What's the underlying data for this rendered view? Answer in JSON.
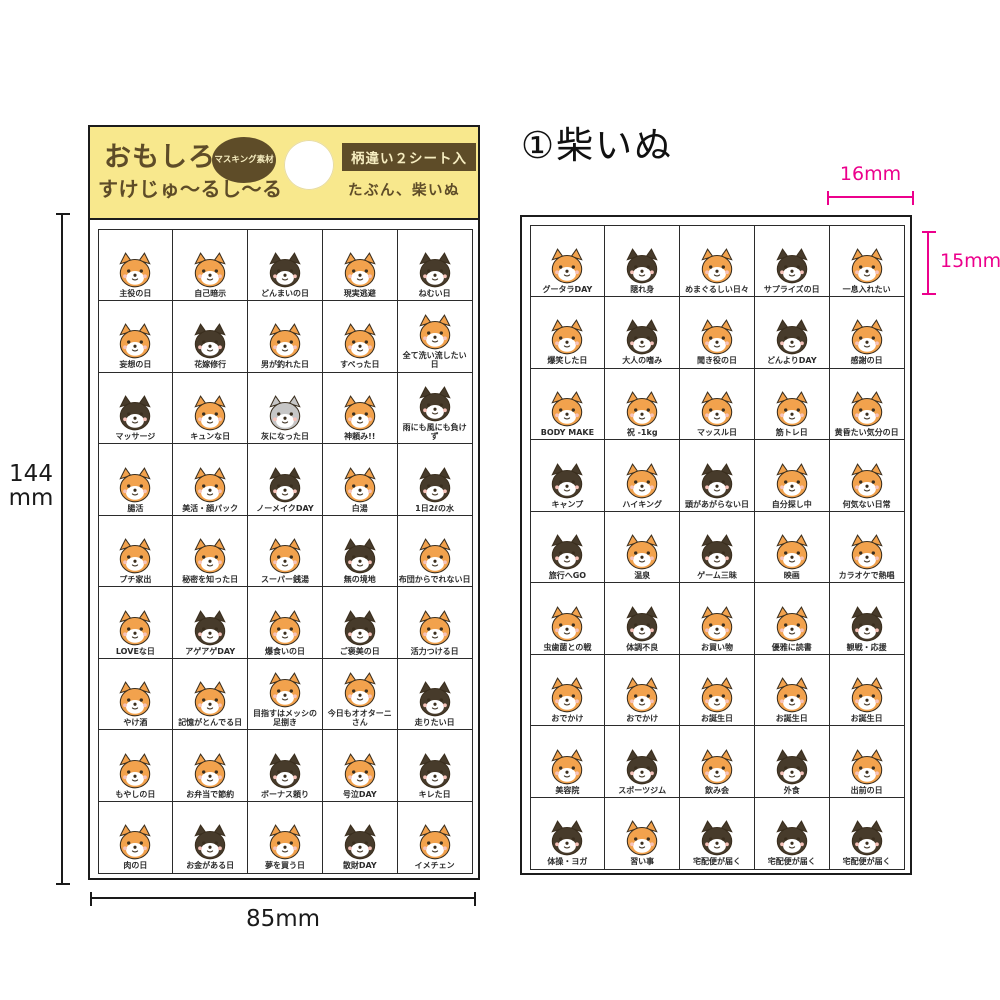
{
  "page": {
    "title_annotation": "①柴いぬ"
  },
  "colors": {
    "header_yellow": "#f8e88d",
    "brand_brown": "#5e4c28",
    "dimension_pink": "#ec008c",
    "sticker_orange": "#f2a24d",
    "sticker_black": "#473b2b",
    "sticker_gray": "#c6c6c6",
    "muzzle_white": "#ffffff",
    "face_dark": "#3a2e1e"
  },
  "dimensions": {
    "sheet_height_line1": "144",
    "sheet_height_line2": "mm",
    "sheet_width": "85mm",
    "cell_width": "16mm",
    "cell_height": "15mm"
  },
  "sheet1": {
    "header": {
      "logo_line1": "おもしろ",
      "logo_line2": "すけじゅ〜るし〜る",
      "badge_cloud": "マスキング素材",
      "badge_right": "柄違い２シート入",
      "subtitle": "たぶん、柴いぬ"
    },
    "stickers": [
      {
        "label": "主役の日",
        "variant": "orange"
      },
      {
        "label": "自己暗示",
        "variant": "orange"
      },
      {
        "label": "どんまいの日",
        "variant": "black"
      },
      {
        "label": "現実逃避",
        "variant": "orange"
      },
      {
        "label": "ねむい日",
        "variant": "black"
      },
      {
        "label": "妄想の日",
        "variant": "orange"
      },
      {
        "label": "花嫁修行",
        "variant": "black"
      },
      {
        "label": "男が釣れた日",
        "variant": "orange"
      },
      {
        "label": "すべった日",
        "variant": "orange"
      },
      {
        "label": "全て洗い流したい日",
        "variant": "orange"
      },
      {
        "label": "マッサージ",
        "variant": "black"
      },
      {
        "label": "キュンな日",
        "variant": "orange"
      },
      {
        "label": "灰になった日",
        "variant": "gray"
      },
      {
        "label": "神頼み!!",
        "variant": "orange"
      },
      {
        "label": "雨にも風にも負けず",
        "variant": "black"
      },
      {
        "label": "腸活",
        "variant": "orange"
      },
      {
        "label": "美活・顔パック",
        "variant": "orange"
      },
      {
        "label": "ノーメイクDAY",
        "variant": "black"
      },
      {
        "label": "白湯",
        "variant": "orange"
      },
      {
        "label": "1日2ℓの水",
        "variant": "black"
      },
      {
        "label": "プチ家出",
        "variant": "orange"
      },
      {
        "label": "秘密を知った日",
        "variant": "orange"
      },
      {
        "label": "スーパー銭湯",
        "variant": "orange"
      },
      {
        "label": "無の境地",
        "variant": "black"
      },
      {
        "label": "布団からでれない日",
        "variant": "orange"
      },
      {
        "label": "LOVEな日",
        "variant": "orange"
      },
      {
        "label": "アゲアゲDAY",
        "variant": "black"
      },
      {
        "label": "爆食いの日",
        "variant": "orange"
      },
      {
        "label": "ご褒美の日",
        "variant": "black"
      },
      {
        "label": "活力つける日",
        "variant": "orange"
      },
      {
        "label": "やけ酒",
        "variant": "orange"
      },
      {
        "label": "記憶がとんでる日",
        "variant": "orange"
      },
      {
        "label": "目指すはメッシの足捌き",
        "variant": "orange"
      },
      {
        "label": "今日もオオターニさん",
        "variant": "orange"
      },
      {
        "label": "走りたい日",
        "variant": "black"
      },
      {
        "label": "もやしの日",
        "variant": "orange"
      },
      {
        "label": "お弁当で節約",
        "variant": "orange"
      },
      {
        "label": "ボーナス頼り",
        "variant": "black"
      },
      {
        "label": "号泣DAY",
        "variant": "orange"
      },
      {
        "label": "キレた日",
        "variant": "black"
      },
      {
        "label": "肉の日",
        "variant": "orange"
      },
      {
        "label": "お金がある日",
        "variant": "black"
      },
      {
        "label": "夢を買う日",
        "variant": "orange"
      },
      {
        "label": "散財DAY",
        "variant": "black"
      },
      {
        "label": "イメチェン",
        "variant": "orange"
      }
    ]
  },
  "sheet2": {
    "stickers": [
      {
        "label": "グータラDAY",
        "variant": "orange"
      },
      {
        "label": "隠れ身",
        "variant": "black"
      },
      {
        "label": "めまぐるしい日々",
        "variant": "orange"
      },
      {
        "label": "サプライズの日",
        "variant": "black"
      },
      {
        "label": "一息入れたい",
        "variant": "orange"
      },
      {
        "label": "爆笑した日",
        "variant": "orange"
      },
      {
        "label": "大人の嗜み",
        "variant": "black"
      },
      {
        "label": "聞き役の日",
        "variant": "orange"
      },
      {
        "label": "どんよりDAY",
        "variant": "black"
      },
      {
        "label": "感謝の日",
        "variant": "orange"
      },
      {
        "label": "BODY MAKE",
        "variant": "orange"
      },
      {
        "label": "祝 -1kg",
        "variant": "orange"
      },
      {
        "label": "マッスル日",
        "variant": "orange"
      },
      {
        "label": "筋トレ日",
        "variant": "orange"
      },
      {
        "label": "黄昏たい気分の日",
        "variant": "orange"
      },
      {
        "label": "キャンプ",
        "variant": "black"
      },
      {
        "label": "ハイキング",
        "variant": "orange"
      },
      {
        "label": "頭があがらない日",
        "variant": "black"
      },
      {
        "label": "自分探し中",
        "variant": "orange"
      },
      {
        "label": "何気ない日常",
        "variant": "orange"
      },
      {
        "label": "旅行へGO",
        "variant": "black"
      },
      {
        "label": "温泉",
        "variant": "orange"
      },
      {
        "label": "ゲーム三昧",
        "variant": "black"
      },
      {
        "label": "映画",
        "variant": "orange"
      },
      {
        "label": "カラオケで熱唱",
        "variant": "orange"
      },
      {
        "label": "虫歯菌との戦",
        "variant": "orange"
      },
      {
        "label": "体調不良",
        "variant": "black"
      },
      {
        "label": "お買い物",
        "variant": "orange"
      },
      {
        "label": "優雅に読書",
        "variant": "orange"
      },
      {
        "label": "観戦・応援",
        "variant": "black"
      },
      {
        "label": "おでかけ",
        "variant": "orange"
      },
      {
        "label": "おでかけ",
        "variant": "orange"
      },
      {
        "label": "お誕生日",
        "variant": "orange"
      },
      {
        "label": "お誕生日",
        "variant": "orange"
      },
      {
        "label": "お誕生日",
        "variant": "orange"
      },
      {
        "label": "美容院",
        "variant": "orange"
      },
      {
        "label": "スポーツジム",
        "variant": "black"
      },
      {
        "label": "飲み会",
        "variant": "orange"
      },
      {
        "label": "外食",
        "variant": "black"
      },
      {
        "label": "出前の日",
        "variant": "orange"
      },
      {
        "label": "体操・ヨガ",
        "variant": "black"
      },
      {
        "label": "習い事",
        "variant": "orange"
      },
      {
        "label": "宅配便が届く",
        "variant": "black"
      },
      {
        "label": "宅配便が届く",
        "variant": "black"
      },
      {
        "label": "宅配便が届く",
        "variant": "black"
      }
    ]
  }
}
